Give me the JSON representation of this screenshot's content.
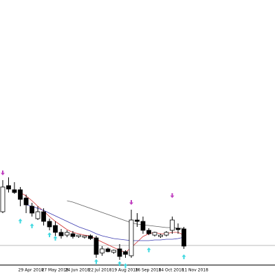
{
  "chart_data": {
    "type": "candlestick",
    "categories": [
      null,
      null,
      null,
      "29 Apr 2018",
      null,
      null,
      null,
      "27 May 2018",
      null,
      null,
      null,
      "24 Jun 2018",
      null,
      null,
      null,
      "22 Jul 2018",
      null,
      null,
      null,
      "19 Aug 2018",
      null,
      null,
      null,
      "16 Sep 2018",
      null,
      null,
      null,
      "14 Oct 2018",
      null,
      null,
      null,
      "11 Nov 2018"
    ],
    "open": [
      92,
      130,
      124,
      124,
      112,
      100,
      82,
      92,
      78,
      72,
      62,
      58,
      60,
      56,
      55,
      57,
      54,
      32,
      38,
      33,
      38,
      34,
      28,
      80,
      78,
      65,
      58,
      56,
      58,
      65,
      68,
      67
    ],
    "high": [
      138,
      142,
      135,
      128,
      117,
      105,
      100,
      97,
      82,
      78,
      67,
      65,
      64,
      58,
      57,
      59,
      57,
      42,
      40,
      37,
      45,
      36,
      95,
      90,
      85,
      68,
      63,
      60,
      64,
      85,
      75,
      70
    ],
    "low": [
      90,
      120,
      118,
      100,
      90,
      85,
      80,
      72,
      65,
      57,
      53,
      55,
      53,
      54,
      53,
      51,
      25,
      28,
      33,
      31,
      22,
      25,
      25,
      70,
      60,
      58,
      56,
      54,
      56,
      60,
      60,
      38
    ],
    "close": [
      128,
      125,
      120,
      110,
      102,
      90,
      92,
      78,
      70,
      62,
      57,
      62,
      56,
      58,
      57,
      53,
      30,
      38,
      34,
      36,
      27,
      30,
      80,
      78,
      65,
      60,
      62,
      58,
      62,
      80,
      66,
      42
    ],
    "series": [
      {
        "color": "#d03030",
        "values": [
          null,
          null,
          null,
          120,
          115,
          108,
          100,
          93,
          85,
          78,
          72,
          66,
          62,
          60,
          58,
          57,
          52,
          48,
          44,
          40,
          36,
          33,
          40,
          48,
          56,
          60,
          62,
          60,
          60,
          62,
          62,
          58
        ]
      },
      {
        "color": "#3a3ab0",
        "values": [
          null,
          null,
          null,
          null,
          102,
          100,
          97,
          94,
          90,
          86,
          82,
          78,
          74,
          70,
          67,
          64,
          60,
          57,
          55,
          53,
          52,
          51,
          50,
          50,
          50,
          50,
          51,
          51,
          52,
          52,
          53,
          55
        ]
      },
      {
        "color": "#606060",
        "values": [
          null,
          null,
          null,
          null,
          null,
          null,
          null,
          null,
          null,
          null,
          null,
          108,
          106,
          103,
          100,
          97,
          94,
          91,
          88,
          85,
          82,
          79,
          76,
          74,
          73,
          72,
          71,
          70,
          69,
          69,
          68,
          68
        ]
      }
    ],
    "down_arrows": {
      "color": "#c040c0",
      "values": [
        145,
        null,
        null,
        null,
        null,
        null,
        null,
        null,
        null,
        null,
        null,
        null,
        null,
        null,
        null,
        null,
        null,
        null,
        null,
        null,
        null,
        null,
        102,
        null,
        null,
        null,
        null,
        null,
        null,
        112,
        null,
        null
      ]
    },
    "up_arrows": {
      "color": "#40d8e0",
      "values": [
        null,
        null,
        null,
        82,
        null,
        75,
        null,
        null,
        62,
        57,
        null,
        null,
        null,
        null,
        null,
        null,
        23,
        null,
        null,
        null,
        20,
        17,
        null,
        null,
        null,
        40,
        null,
        null,
        null,
        null,
        null,
        30
      ]
    },
    "hline": 43,
    "ylim": [
      15,
      400
    ]
  }
}
